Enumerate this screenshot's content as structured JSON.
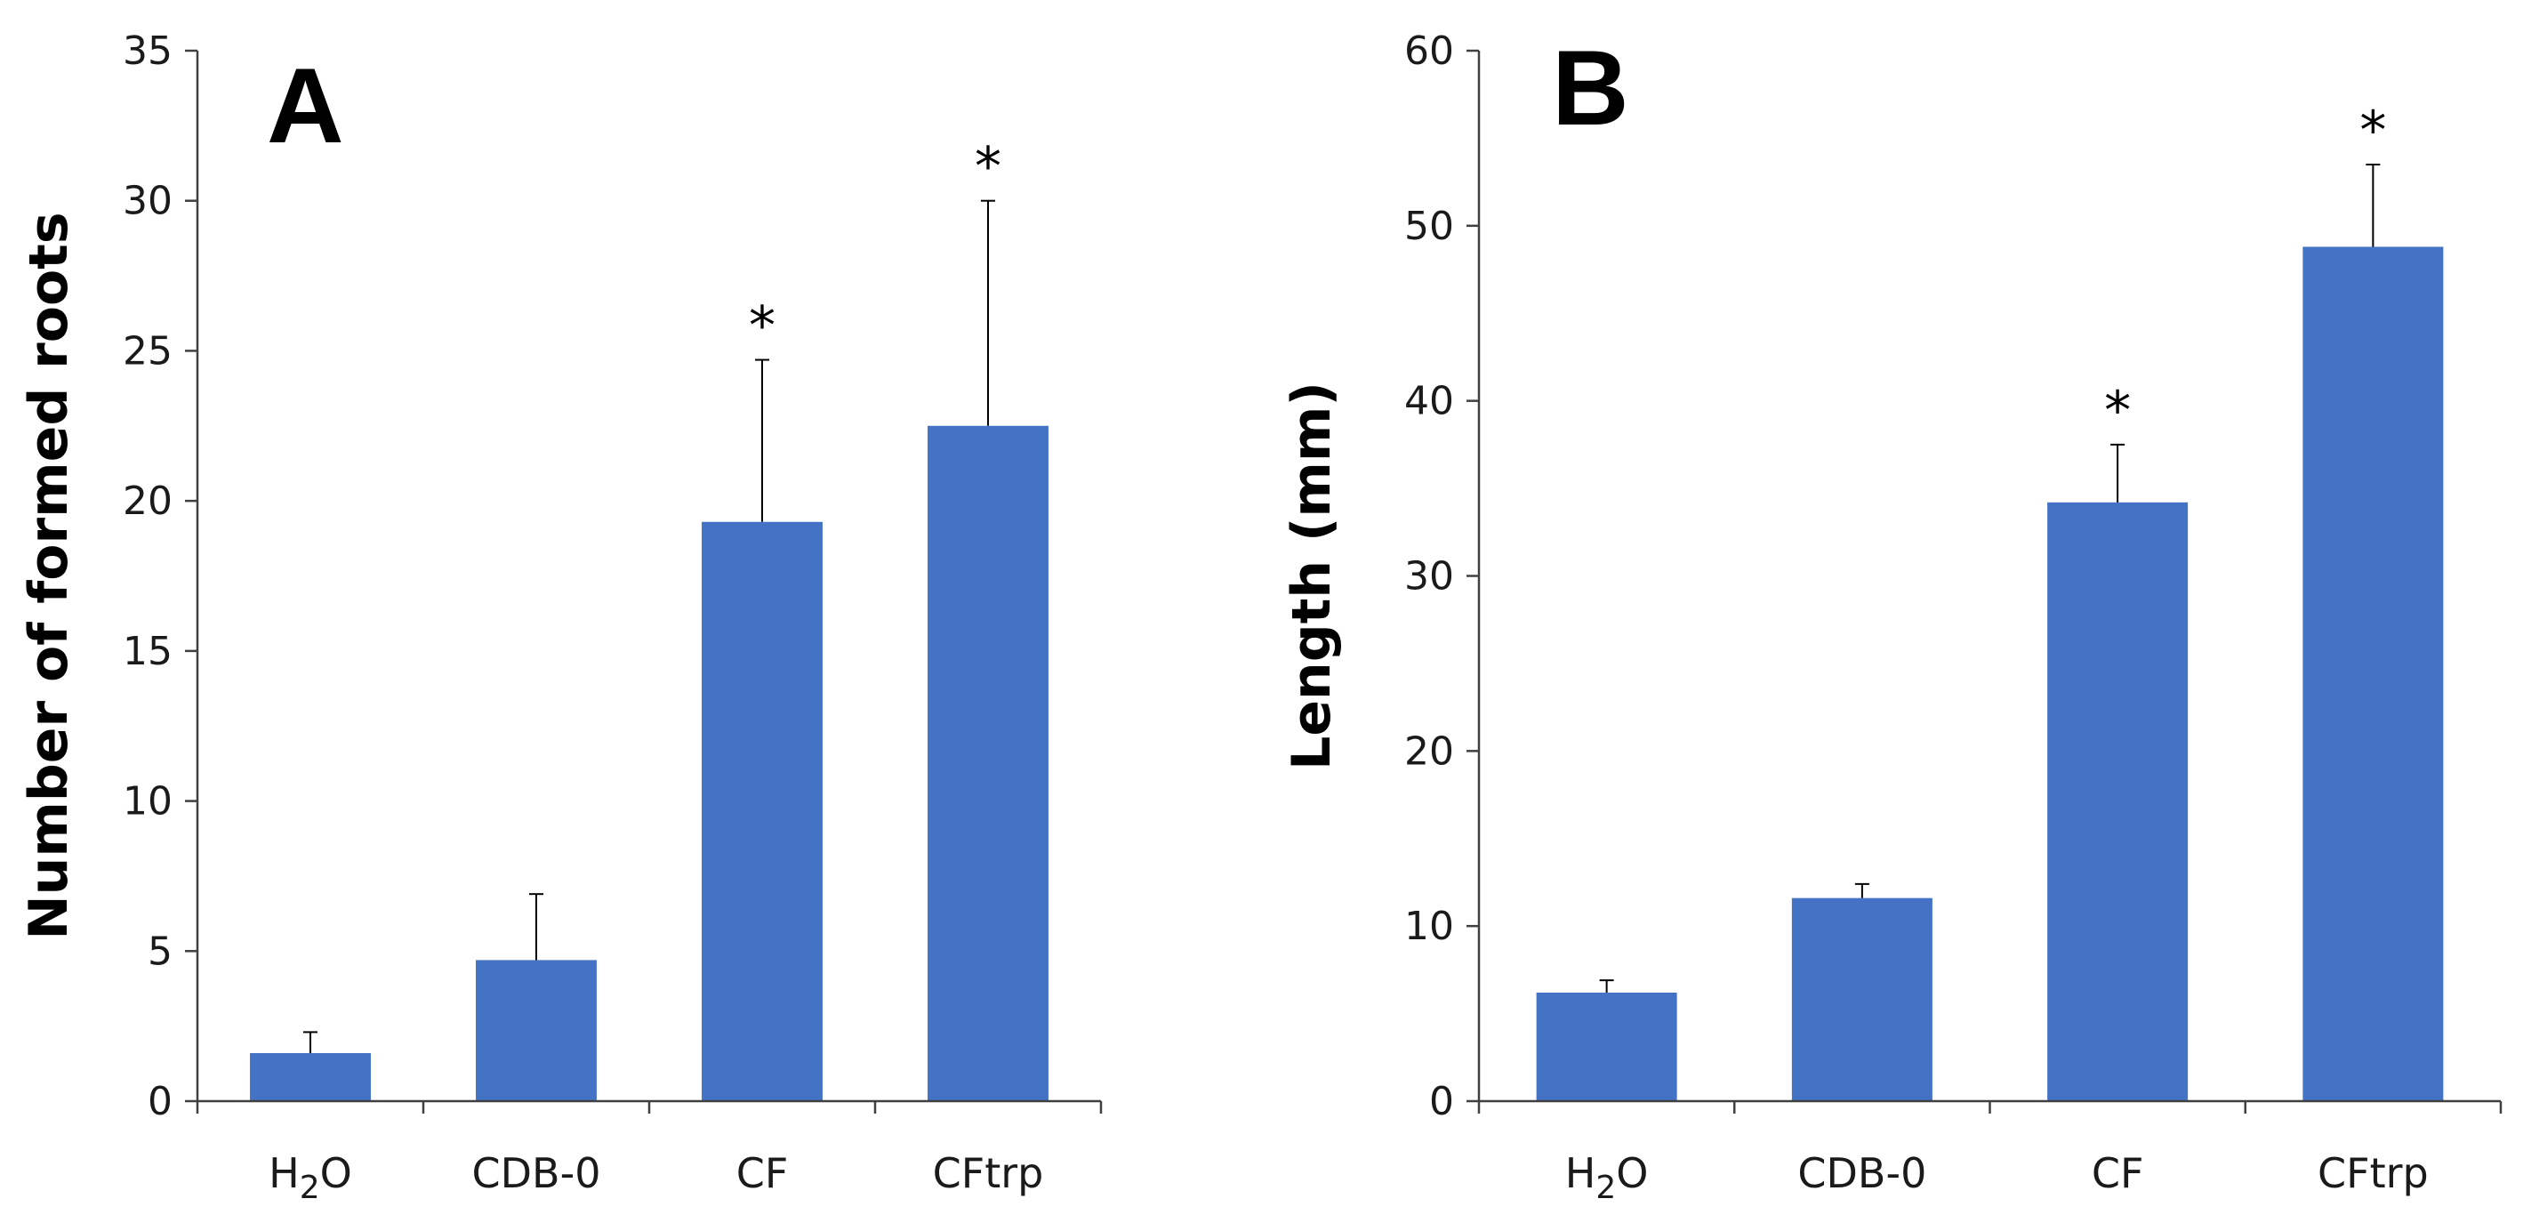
{
  "colors": {
    "bar": "#4472C4",
    "axis": "#404040",
    "text": "#000000"
  },
  "chart_data": [
    {
      "type": "bar",
      "panel_label": "A",
      "title": "",
      "xlabel": "",
      "ylabel": "Number of formed roots",
      "ylim": [
        0,
        35
      ],
      "yticks": [
        0,
        5,
        10,
        15,
        20,
        25,
        30,
        35
      ],
      "categories": [
        {
          "base": "H",
          "sub": "2",
          "rest": "O"
        },
        {
          "base": "CDB-0",
          "sub": "",
          "rest": ""
        },
        {
          "base": "CF",
          "sub": "",
          "rest": ""
        },
        {
          "base": "CFtrp",
          "sub": "",
          "rest": ""
        }
      ],
      "values": [
        1.6,
        4.7,
        19.3,
        22.5
      ],
      "error_upper": [
        2.3,
        6.9,
        24.7,
        30.0
      ],
      "significance": [
        "",
        "",
        "*",
        "*"
      ]
    },
    {
      "type": "bar",
      "panel_label": "B",
      "title": "",
      "xlabel": "",
      "ylabel": "Length (mm)",
      "ylim": [
        0,
        60
      ],
      "yticks": [
        0,
        10,
        20,
        30,
        40,
        50,
        60
      ],
      "categories": [
        {
          "base": "H",
          "sub": "2",
          "rest": "O"
        },
        {
          "base": "CDB-0",
          "sub": "",
          "rest": ""
        },
        {
          "base": "CF",
          "sub": "",
          "rest": ""
        },
        {
          "base": "CFtrp",
          "sub": "",
          "rest": ""
        }
      ],
      "values": [
        6.2,
        11.6,
        34.2,
        48.8
      ],
      "error_upper": [
        6.9,
        12.4,
        37.5,
        53.5
      ],
      "significance": [
        "",
        "",
        "*",
        "*"
      ]
    }
  ]
}
